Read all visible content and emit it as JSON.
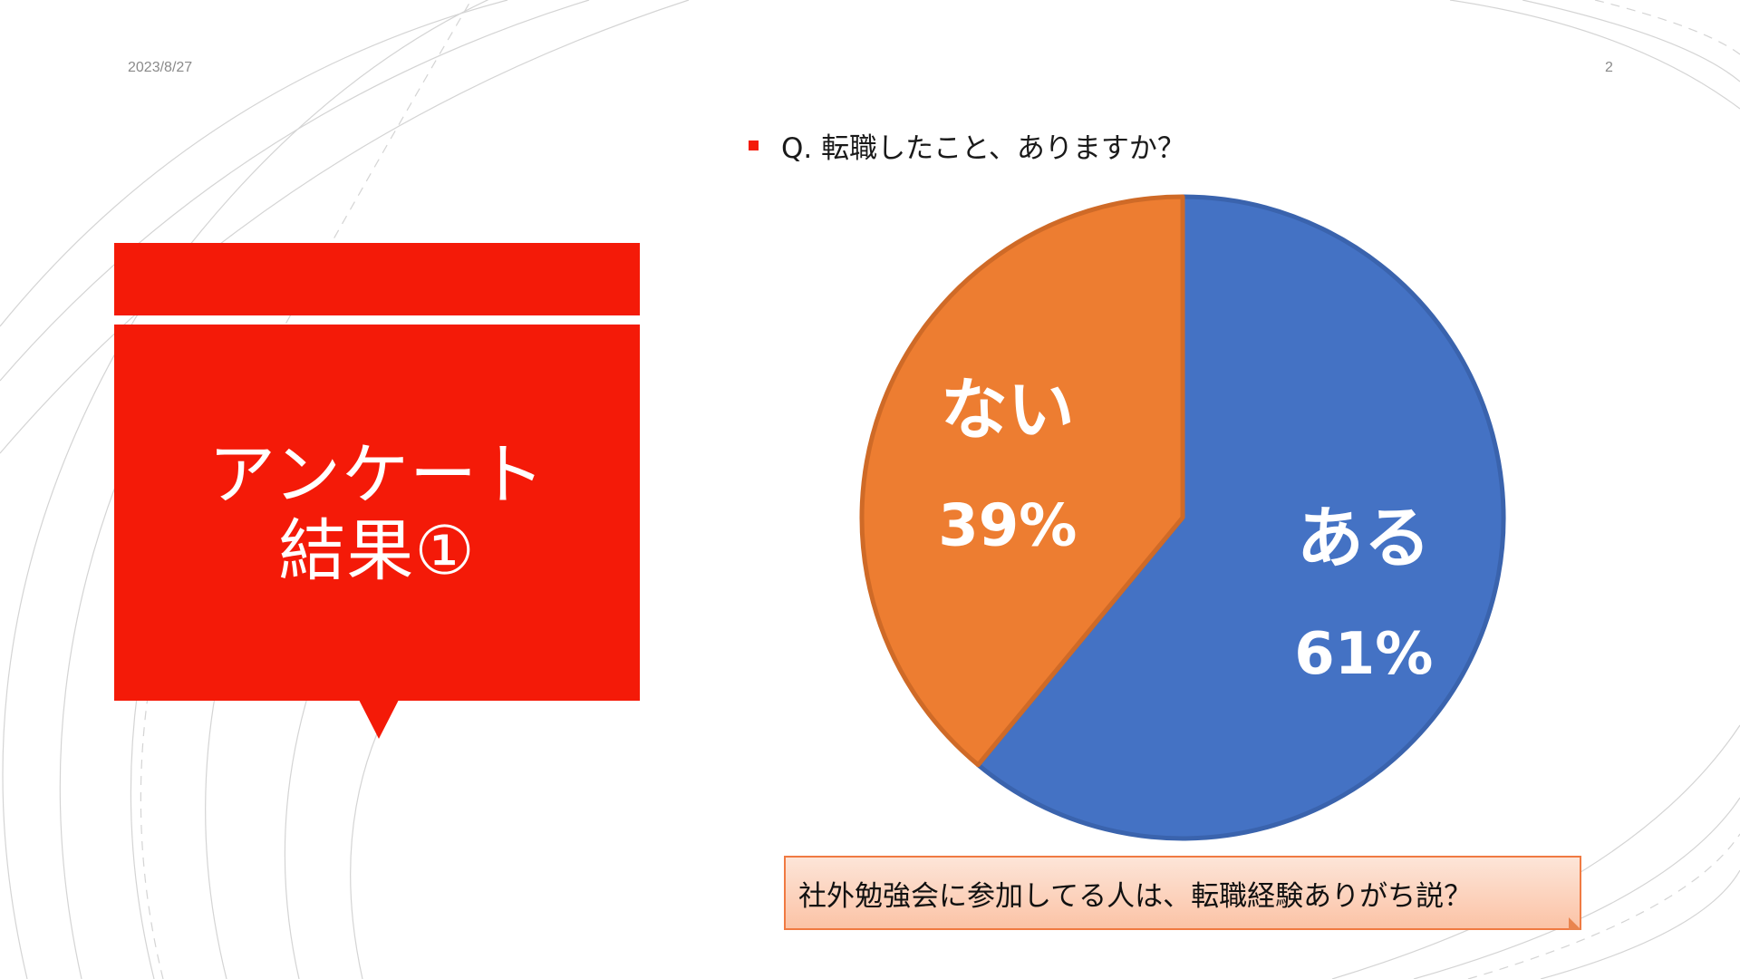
{
  "slide": {
    "date": "2023/8/27",
    "page_number": "2"
  },
  "title": {
    "line1": "アンケート",
    "line2": "結果①"
  },
  "question": {
    "text": "Q. 転職したこと、ありますか？"
  },
  "callout": {
    "text": "社外勉強会に参加してる人は、転職経験ありがち説？"
  },
  "colors": {
    "accent_red": "#f41a08",
    "pie_blue": "#4472c4",
    "pie_orange": "#ed7d31",
    "callout_border": "#f07a42"
  },
  "chart_data": {
    "type": "pie",
    "title": "",
    "slices": [
      {
        "label": "ある",
        "value": 61,
        "value_label": "61%",
        "color": "#4472c4"
      },
      {
        "label": "ない",
        "value": 39,
        "value_label": "39%",
        "color": "#ed7d31"
      }
    ],
    "start": "12 o'clock",
    "direction": "clockwise",
    "legend": "none"
  }
}
